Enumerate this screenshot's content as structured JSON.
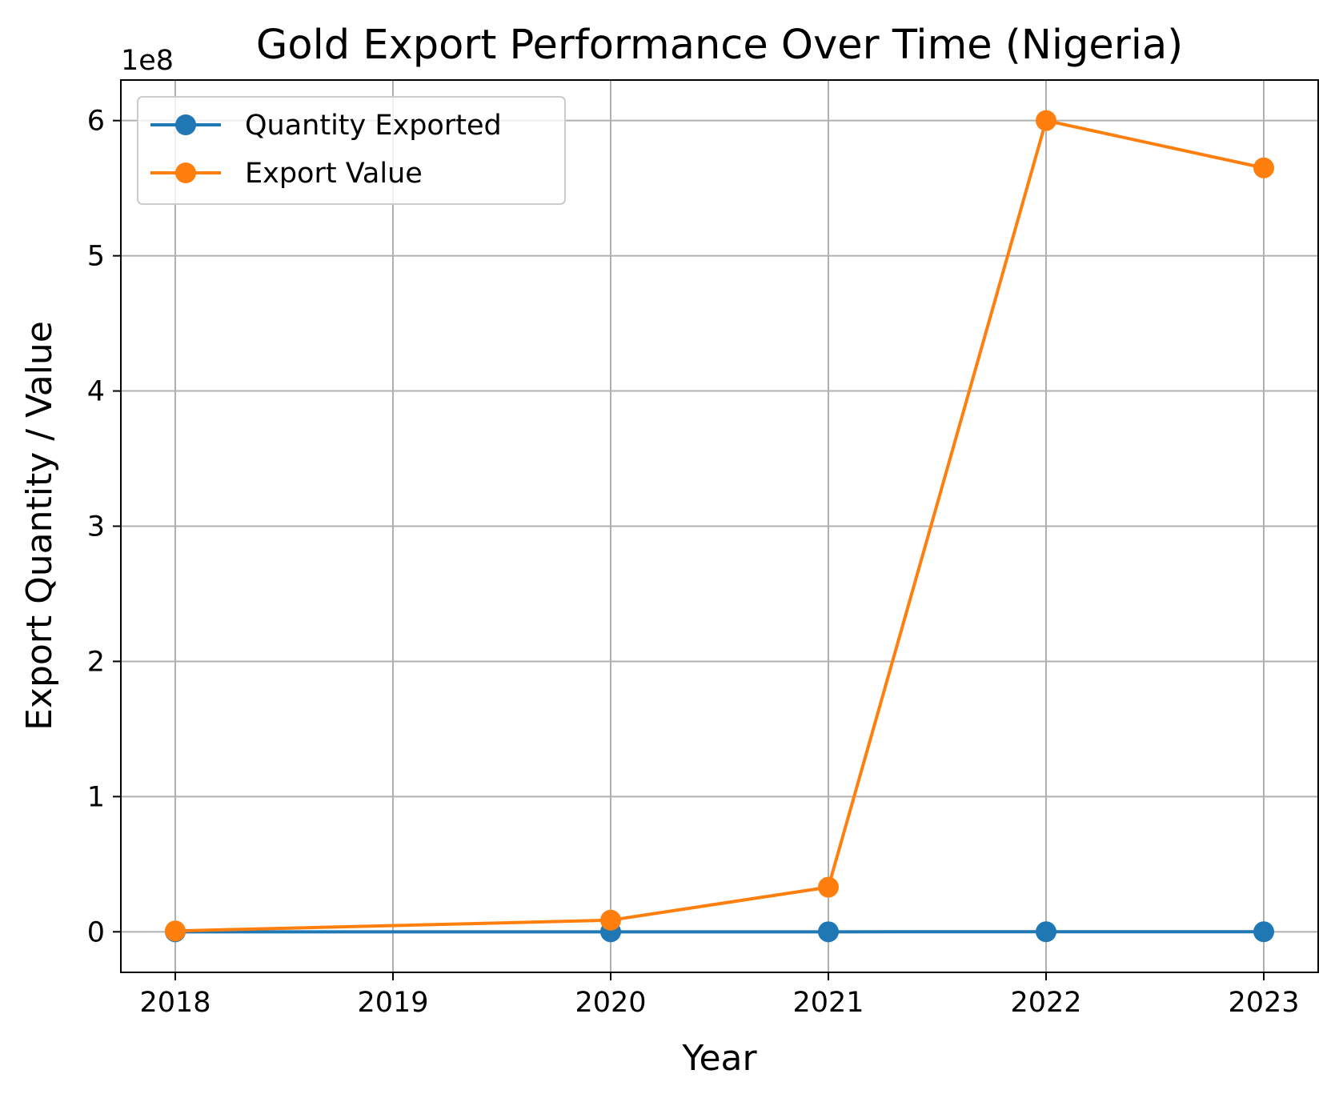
{
  "chart_data": {
    "type": "line",
    "title": "Gold Export Performance Over Time (Nigeria)",
    "xlabel": "Year",
    "ylabel": "Export Quantity  / Value",
    "y_offset_label": "1e8",
    "y_scale_factor": 100000000,
    "xlim": [
      2017.75,
      2023.25
    ],
    "ylim": [
      -30000000,
      630000000
    ],
    "x_ticks": [
      2018,
      2019,
      2020,
      2021,
      2022,
      2023
    ],
    "x_tick_labels": [
      "2018",
      "2019",
      "2020",
      "2021",
      "2022",
      "2023"
    ],
    "y_ticks": [
      0,
      100000000,
      200000000,
      300000000,
      400000000,
      500000000,
      600000000
    ],
    "y_tick_labels": [
      "0",
      "1",
      "2",
      "3",
      "4",
      "5",
      "6"
    ],
    "grid": true,
    "legend_position": "upper-left",
    "series": [
      {
        "name": "Quantity Exported",
        "color": "#1f77b4",
        "marker": "circle",
        "x": [
          2018,
          2020,
          2021,
          2022,
          2023
        ],
        "y": [
          30,
          300,
          900,
          12000,
          10000
        ]
      },
      {
        "name": "Export Value",
        "color": "#ff7f0e",
        "marker": "circle",
        "x": [
          2018,
          2020,
          2021,
          2022,
          2023
        ],
        "y": [
          600000,
          8600000,
          33000000,
          600000000,
          565000000
        ]
      }
    ]
  }
}
